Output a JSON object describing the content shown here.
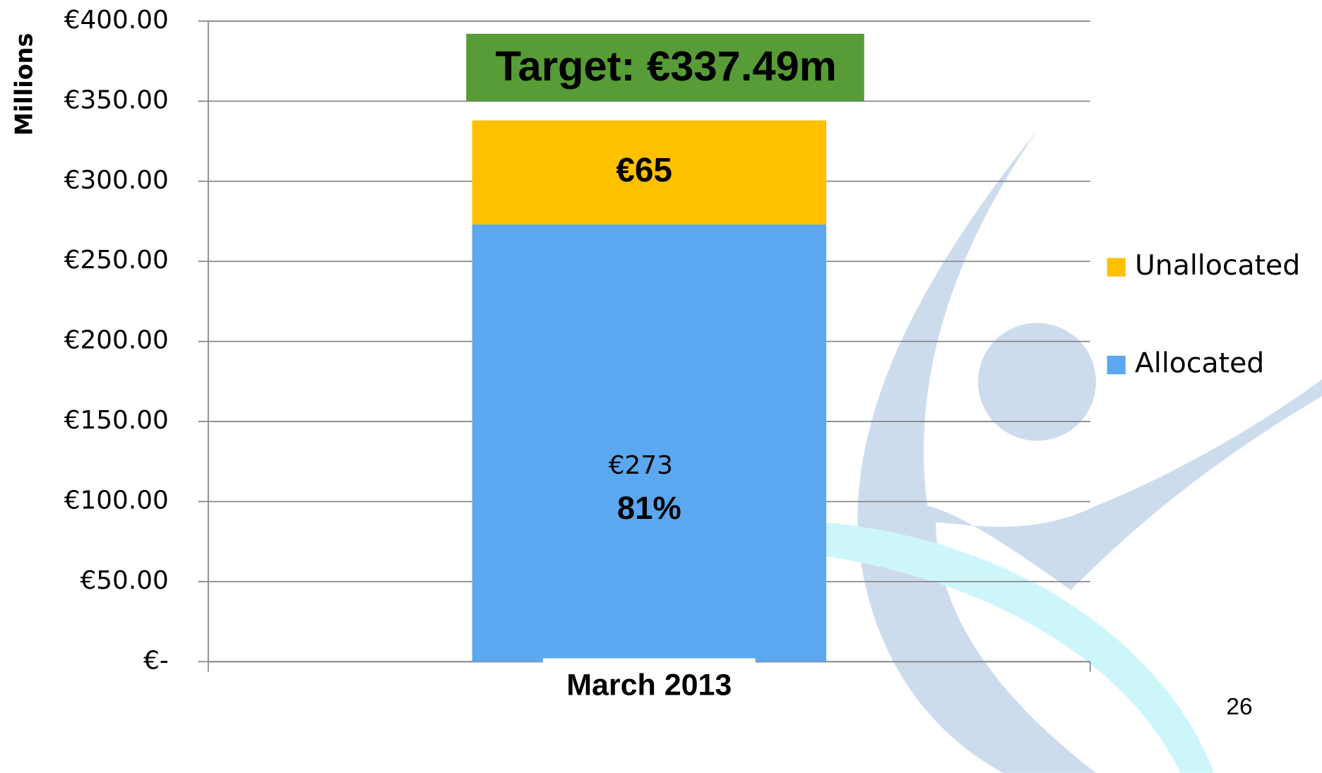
{
  "chart_data": {
    "type": "stacked-bar",
    "y_label": "Millions",
    "categories": [
      "March 2013"
    ],
    "series": [
      {
        "name": "Allocated",
        "color": "#5ba8f0",
        "values": [
          273
        ],
        "value_labels": [
          "€273"
        ]
      },
      {
        "name": "Unallocated",
        "color": "#ffc000",
        "values": [
          65
        ],
        "value_labels": [
          "€65"
        ]
      }
    ],
    "share_label": "81%",
    "target_label": "Target: €337.49m",
    "target_color": "#579c37",
    "ylim": [
      0,
      400
    ],
    "yticks": [
      {
        "value": 0,
        "label": "€-"
      },
      {
        "value": 50,
        "label": "€50.00"
      },
      {
        "value": 100,
        "label": "€100.00"
      },
      {
        "value": 150,
        "label": "€150.00"
      },
      {
        "value": 200,
        "label": "€200.00"
      },
      {
        "value": 250,
        "label": "€250.00"
      },
      {
        "value": 300,
        "label": "€300.00"
      },
      {
        "value": 350,
        "label": "€350.00"
      },
      {
        "value": 400,
        "label": "€400.00"
      }
    ],
    "grid": true
  },
  "page_number": "26"
}
